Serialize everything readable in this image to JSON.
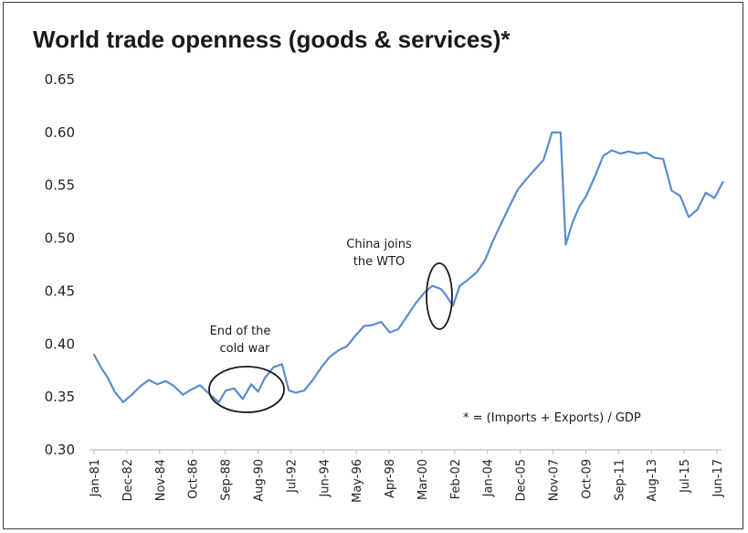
{
  "chart_data": {
    "type": "line",
    "title": "World trade openness (goods & services)*",
    "ylim": [
      0.3,
      0.65
    ],
    "yticks": [
      "0.30",
      "0.35",
      "0.40",
      "0.45",
      "0.50",
      "0.55",
      "0.60",
      "0.65"
    ],
    "xtick_labels": [
      "Jan-81",
      "Dec-82",
      "Nov-84",
      "Oct-86",
      "Sep-88",
      "Aug-90",
      "Jul-92",
      "Jun-94",
      "May-96",
      "Apr-98",
      "Mar-00",
      "Feb-02",
      "Jan-04",
      "Dec-05",
      "Nov-07",
      "Oct-09",
      "Sep-11",
      "Aug-13",
      "Jul-15",
      "Jun-17"
    ],
    "grid": false,
    "legend": "none",
    "line_color": "#5b8ccc",
    "series": [
      {
        "x": [
          1981.0,
          1981.4,
          1981.8,
          1982.2,
          1982.7,
          1983.2,
          1983.7,
          1984.2,
          1984.7,
          1985.2,
          1985.7,
          1986.2,
          1986.7,
          1987.2,
          1987.8,
          1988.3,
          1988.7,
          1989.2,
          1989.7,
          1990.2,
          1990.6,
          1991.0,
          1991.5,
          1992.0,
          1992.4,
          1992.8,
          1993.3,
          1993.8,
          1994.3,
          1994.8,
          1995.3,
          1995.8,
          1996.3,
          1996.8,
          1997.3,
          1997.8,
          1998.3,
          1998.8,
          1999.3,
          1999.8,
          2000.3,
          2000.8,
          2001.3,
          2001.6,
          2002.0,
          2002.4,
          2002.9,
          2003.4,
          2003.9,
          2004.3,
          2004.8,
          2005.3,
          2005.8,
          2006.3,
          2006.8,
          2007.3,
          2007.8,
          2008.3,
          2008.6,
          2009.0,
          2009.4,
          2009.8,
          2010.3,
          2010.8,
          2011.3,
          2011.8,
          2012.3,
          2012.8,
          2013.3,
          2013.8,
          2014.3,
          2014.8,
          2015.3,
          2015.8,
          2016.3,
          2016.8,
          2017.3,
          2017.8
        ],
        "y": [
          0.39,
          0.378,
          0.368,
          0.355,
          0.345,
          0.352,
          0.36,
          0.366,
          0.362,
          0.365,
          0.36,
          0.352,
          0.357,
          0.361,
          0.352,
          0.345,
          0.356,
          0.358,
          0.348,
          0.362,
          0.355,
          0.368,
          0.378,
          0.381,
          0.356,
          0.354,
          0.356,
          0.366,
          0.378,
          0.388,
          0.394,
          0.398,
          0.408,
          0.417,
          0.418,
          0.421,
          0.411,
          0.414,
          0.426,
          0.438,
          0.448,
          0.455,
          0.452,
          0.446,
          0.436,
          0.455,
          0.461,
          0.468,
          0.48,
          0.496,
          0.513,
          0.53,
          0.546,
          0.556,
          0.565,
          0.574,
          0.6,
          0.6,
          0.494,
          0.515,
          0.53,
          0.54,
          0.558,
          0.578,
          0.583,
          0.58,
          0.582,
          0.58,
          0.581,
          0.576,
          0.575,
          0.545,
          0.54,
          0.52,
          0.527,
          0.543,
          0.538,
          0.553
        ]
      }
    ],
    "annotations": [
      {
        "lines": [
          "End of the",
          "cold war"
        ]
      },
      {
        "lines": [
          "China joins",
          "the WTO"
        ]
      },
      {
        "lines": [
          "* = (Imports + Exports) / GDP"
        ]
      }
    ]
  }
}
